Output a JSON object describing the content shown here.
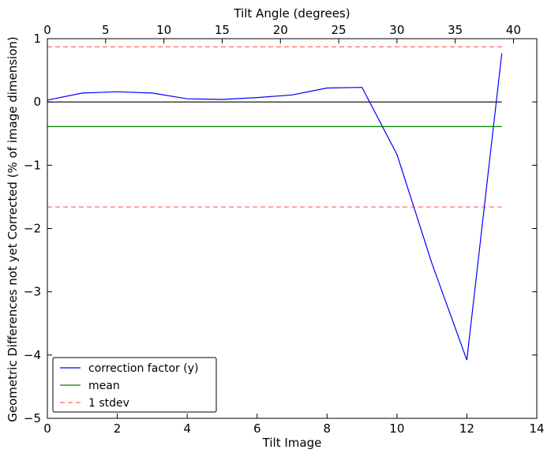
{
  "chart_data": {
    "type": "line",
    "xlabel": "Tilt Image",
    "ylabel": "Geometric Differences not yet Corrected (% of image dimension)",
    "top_xlabel": "Tilt Angle (degrees)",
    "xlim": [
      0,
      14
    ],
    "ylim": [
      -5,
      1
    ],
    "top_xlim": [
      0,
      42
    ],
    "xticks": [
      0,
      2,
      4,
      6,
      8,
      10,
      12,
      14
    ],
    "yticks": [
      1,
      0,
      -1,
      -2,
      -3,
      -4,
      -5
    ],
    "ytick_labels": [
      "1",
      "0",
      "−1",
      "−2",
      "−3",
      "−4",
      "−5"
    ],
    "top_xticks": [
      0,
      5,
      10,
      15,
      20,
      25,
      30,
      35,
      40
    ],
    "series": [
      {
        "name": "correction factor (y)",
        "color": "#0000ff",
        "style": "solid",
        "x": [
          0,
          1,
          2,
          3,
          4,
          5,
          6,
          7,
          8,
          9,
          10,
          11,
          12,
          13
        ],
        "y": [
          0.03,
          0.14,
          0.16,
          0.14,
          0.05,
          0.04,
          0.07,
          0.11,
          0.22,
          0.23,
          -0.83,
          -2.55,
          -4.08,
          0.77
        ]
      },
      {
        "name": "mean",
        "color": "#008000",
        "style": "solid",
        "x": [
          0,
          13
        ],
        "y": [
          -0.39,
          -0.39
        ]
      },
      {
        "name": "1 stdev",
        "color": "#ff0000",
        "style": "dashed",
        "x": [
          0,
          13
        ],
        "y": [
          0.87,
          0.87
        ]
      },
      {
        "name": "",
        "color": "#ff0000",
        "style": "dashed",
        "x": [
          0,
          13
        ],
        "y": [
          -1.66,
          -1.66
        ]
      },
      {
        "name": "",
        "color": "#000000",
        "style": "solid",
        "x": [
          0,
          13
        ],
        "y": [
          0,
          0
        ]
      }
    ],
    "legend": {
      "placement": "lower-left",
      "entries": [
        "correction factor (y)",
        "mean",
        "1 stdev"
      ]
    },
    "grid": false
  }
}
